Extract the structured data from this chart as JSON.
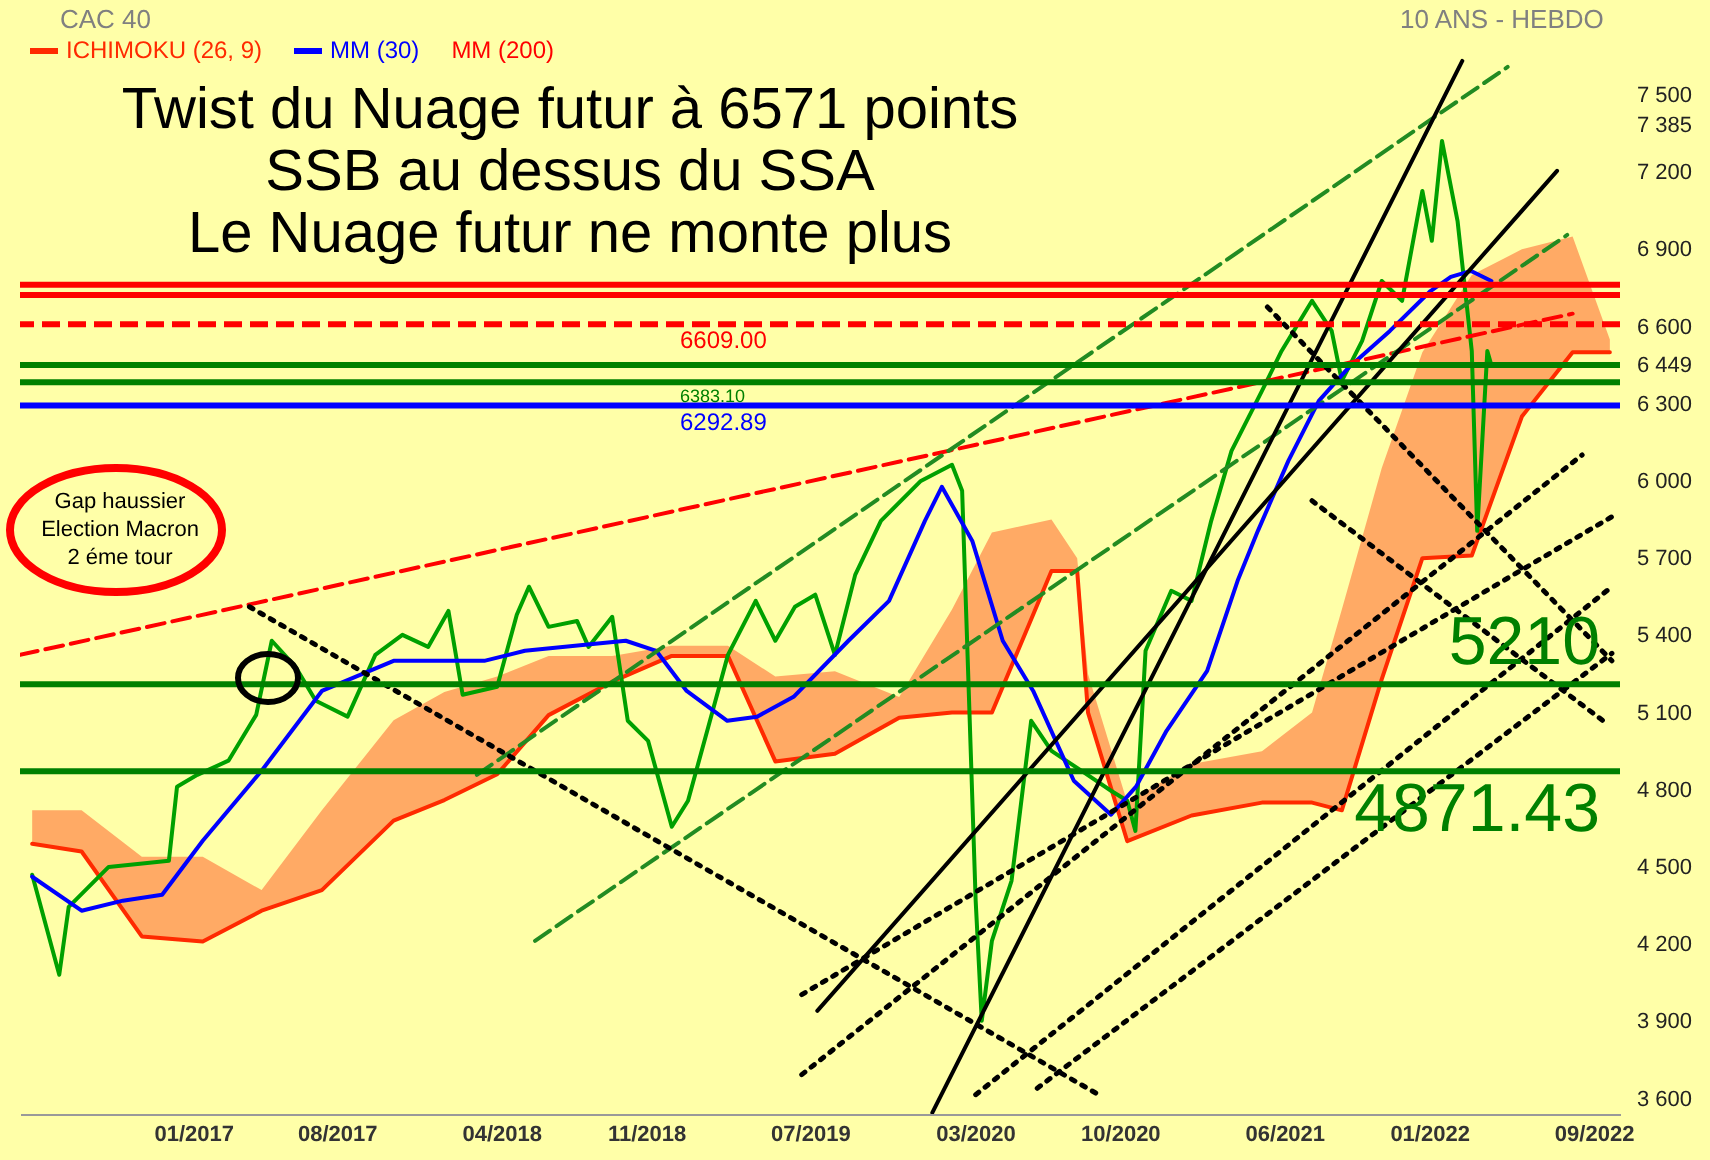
{
  "chart_data": {
    "type": "line",
    "title": "CAC 40",
    "subtitle": "10 ANS - HEBDO",
    "legend": "top left",
    "xlim": [
      "2016-04-20",
      "2022-10-10"
    ],
    "ylim": [
      3540,
      7830
    ],
    "xticks": [
      {
        "value": "2017-01",
        "label": "01/2017"
      },
      {
        "value": "2017-08",
        "label": "08/2017"
      },
      {
        "value": "2018-04",
        "label": "04/2018"
      },
      {
        "value": "2018-11",
        "label": "11/2018"
      },
      {
        "value": "2019-07",
        "label": "07/2019"
      },
      {
        "value": "2020-03",
        "label": "03/2020"
      },
      {
        "value": "2020-10",
        "label": "10/2020"
      },
      {
        "value": "2021-06",
        "label": "06/2021"
      },
      {
        "value": "2022-01",
        "label": "01/2022"
      },
      {
        "value": "2022-09",
        "label": "09/2022"
      }
    ],
    "yticks": [
      {
        "value": 3600,
        "label": "3 600"
      },
      {
        "value": 3900,
        "label": "3 900"
      },
      {
        "value": 4200,
        "label": "4 200"
      },
      {
        "value": 4500,
        "label": "4 500"
      },
      {
        "value": 4800,
        "label": "4 800"
      },
      {
        "value": 5100,
        "label": "5 100"
      },
      {
        "value": 5400,
        "label": "5 400"
      },
      {
        "value": 5700,
        "label": "5 700"
      },
      {
        "value": 6000,
        "label": "6 000"
      },
      {
        "value": 6300,
        "label": "6 300"
      },
      {
        "value": 6600,
        "label": "6 600"
      },
      {
        "value": 6900,
        "label": "6 900"
      },
      {
        "value": 7200,
        "label": "7 200"
      },
      {
        "value": 7385,
        "label": "7 385"
      },
      {
        "value": 6449,
        "label": "6 449"
      },
      {
        "value": 7500,
        "label": "7 500"
      }
    ],
    "series": [
      {
        "name": "ICHIMOKU (26, 9)",
        "color": "#ff2a00",
        "line_style": "solid",
        "x": [
          "2016-05-08",
          "2016-07-20",
          "2016-10-17",
          "2017-01-15",
          "2017-04-12",
          "2017-07-10",
          "2017-10-24",
          "2018-01-07",
          "2018-03-26",
          "2018-06-10",
          "2018-09-12",
          "2018-12-09",
          "2019-03-02",
          "2019-05-11",
          "2019-08-07",
          "2019-11-10",
          "2020-01-27",
          "2020-03-26",
          "2020-06-22",
          "2020-07-30",
          "2020-08-15",
          "2020-10-12",
          "2021-01-15",
          "2021-04-29",
          "2021-07-12",
          "2021-08-25",
          "2021-10-23",
          "2021-12-22",
          "2022-03-05",
          "2022-05-18",
          "2022-08-01",
          "2022-09-25"
        ],
        "values": [
          4590,
          4560,
          4230,
          4210,
          4330,
          4410,
          4680,
          4760,
          4860,
          5090,
          5220,
          5320,
          5320,
          4910,
          4940,
          5080,
          5100,
          5100,
          5650,
          5650,
          5100,
          4600,
          4700,
          4750,
          4750,
          4720,
          5230,
          5700,
          5710,
          6250,
          6500,
          6500
        ],
        "lower": [
          4590,
          4560,
          4230,
          4210,
          4330,
          4410,
          4680,
          4760,
          4860,
          5090,
          5220,
          5320,
          5320,
          4910,
          4940,
          5080,
          5100,
          5100,
          5650,
          5650,
          5100,
          4600,
          4700,
          4750,
          4750,
          4720,
          5230,
          5700,
          5710,
          6250,
          6500,
          6500
        ],
        "upper": [
          4720,
          4720,
          4540,
          4540,
          4410,
          4720,
          5070,
          5180,
          5240,
          5320,
          5320,
          5360,
          5360,
          5240,
          5260,
          5160,
          5500,
          5800,
          5850,
          5700,
          5250,
          4750,
          4900,
          4950,
          5100,
          5500,
          6050,
          6500,
          6800,
          6900,
          6950,
          6550
        ]
      },
      {
        "color": "#00a000",
        "line_style": "solid",
        "x": [
          "2016-05-08",
          "2016-06-17",
          "2016-07-01",
          "2016-08-29",
          "2016-11-26",
          "2016-12-08",
          "2017-01-07",
          "2017-02-22",
          "2017-04-04",
          "2017-04-27",
          "2017-06-01",
          "2017-07-01",
          "2017-08-17",
          "2017-09-27",
          "2017-11-06",
          "2017-12-14",
          "2018-01-13",
          "2018-02-03",
          "2018-03-26",
          "2018-04-24",
          "2018-05-12",
          "2018-06-10",
          "2018-07-22",
          "2018-08-08",
          "2018-09-12",
          "2018-10-05",
          "2018-11-04",
          "2018-12-09",
          "2019-01-02",
          "2019-02-01",
          "2019-03-02",
          "2019-04-12",
          "2019-05-11",
          "2019-06-09",
          "2019-07-09",
          "2019-08-07",
          "2019-09-06",
          "2019-10-14",
          "2019-12-12",
          "2020-01-27",
          "2020-02-11",
          "2020-03-02",
          "2020-03-11",
          "2020-03-26",
          "2020-04-24",
          "2020-05-23",
          "2020-06-22",
          "2020-08-05",
          "2020-09-18",
          "2020-10-12",
          "2020-10-24",
          "2020-11-08",
          "2020-12-16",
          "2021-01-15",
          "2021-02-13",
          "2021-03-15",
          "2021-04-29",
          "2021-05-28",
          "2021-07-12",
          "2021-08-10",
          "2021-08-25",
          "2021-09-24",
          "2021-10-23",
          "2021-11-22",
          "2021-12-22",
          "2022-01-05",
          "2022-01-20",
          "2022-02-12",
          "2022-03-05",
          "2022-03-13",
          "2022-03-28",
          "2022-04-03"
        ],
        "values": [
          4470,
          4081,
          4345,
          4500,
          4524,
          4812,
          4858,
          4913,
          5091,
          5379,
          5278,
          5146,
          5084,
          5324,
          5402,
          5355,
          5495,
          5169,
          5200,
          5480,
          5589,
          5433,
          5456,
          5355,
          5472,
          5068,
          4990,
          4656,
          4757,
          5045,
          5324,
          5534,
          5379,
          5511,
          5558,
          5324,
          5635,
          5845,
          6000,
          6063,
          5962,
          4369,
          3902,
          4213,
          4446,
          5068,
          4951,
          4874,
          4796,
          4757,
          4640,
          5340,
          5573,
          5534,
          5845,
          6117,
          6350,
          6505,
          6700,
          6583,
          6389,
          6544,
          6777,
          6700,
          7127,
          6933,
          7321,
          7010,
          6505,
          5806,
          6505,
          6449
        ]
      },
      {
        "name": "MM (30)",
        "color": "#0000ff",
        "line_style": "solid",
        "x": [
          "2016-05-08",
          "2016-07-20",
          "2016-09-19",
          "2016-11-16",
          "2017-01-15",
          "2017-04-12",
          "2017-07-10",
          "2017-10-24",
          "2018-01-07",
          "2018-03-07",
          "2018-05-06",
          "2018-08-03",
          "2018-10-02",
          "2018-11-16",
          "2018-12-31",
          "2019-03-01",
          "2019-04-14",
          "2019-06-07",
          "2019-08-27",
          "2019-10-26",
          "2019-12-18",
          "2020-01-12",
          "2020-02-26",
          "2020-04-11",
          "2020-05-26",
          "2020-07-25",
          "2020-09-18",
          "2020-10-25",
          "2020-12-09",
          "2021-02-07",
          "2021-03-24",
          "2021-04-23",
          "2021-06-07",
          "2021-07-22",
          "2021-09-05",
          "2021-11-04",
          "2022-01-03",
          "2022-02-02",
          "2022-03-04",
          "2022-04-03"
        ],
        "values": [
          4462,
          4330,
          4369,
          4392,
          4602,
          4874,
          5184,
          5301,
          5301,
          5301,
          5340,
          5363,
          5379,
          5340,
          5184,
          5068,
          5084,
          5161,
          5379,
          5534,
          5845,
          5977,
          5767,
          5379,
          5184,
          4835,
          4703,
          4812,
          5029,
          5262,
          5612,
          5806,
          6078,
          6311,
          6443,
          6583,
          6738,
          6793,
          6816,
          6777
        ]
      },
      {
        "color": "#ff0000",
        "line_style": "dashed",
        "x": [
          "2016-04-20",
          "2022-08-01"
        ],
        "values": [
          5324,
          6650
        ]
      },
      {
        "color": "#228b22",
        "line_style": "dashed",
        "x": [
          "2018-02-24",
          "2022-04-27"
        ],
        "values": [
          4858,
          7609
        ]
      },
      {
        "color": "#228b22",
        "line_style": "dashed",
        "x": [
          "2018-05-21",
          "2022-07-24"
        ],
        "values": [
          4213,
          6956
        ]
      },
      {
        "color": "#000000",
        "line_style": "solid",
        "x": [
          "2019-12-29",
          "2022-02-19"
        ],
        "values": [
          3545,
          7632
        ]
      },
      {
        "color": "#000000",
        "line_style": "solid",
        "x": [
          "2019-07-12",
          "2022-07-09"
        ],
        "values": [
          3941,
          7205
        ]
      },
      {
        "color": "#000000",
        "line_style": "dotted",
        "x": [
          "2017-03-25",
          "2020-09-05"
        ],
        "values": [
          5511,
          3607
        ]
      },
      {
        "color": "#000000",
        "line_style": "dotted",
        "x": [
          "2019-06-19",
          "2022-08-15"
        ],
        "values": [
          3693,
          6101
        ]
      },
      {
        "color": "#000000",
        "line_style": "dotted",
        "x": [
          "2019-06-19",
          "2022-09-28"
        ],
        "values": [
          4004,
          5861
        ]
      },
      {
        "color": "#000000",
        "line_style": "dotted",
        "x": [
          "2020-03-02",
          "2022-09-28"
        ],
        "values": [
          3615,
          5589
        ]
      },
      {
        "color": "#000000",
        "line_style": "dotted",
        "x": [
          "2020-06-01",
          "2022-09-28"
        ],
        "values": [
          3640,
          5330
        ]
      },
      {
        "color": "#000000",
        "line_style": "dotted",
        "x": [
          "2021-05-07",
          "2022-09-28"
        ],
        "values": [
          6676,
          5301
        ]
      },
      {
        "color": "#000000",
        "line_style": "dotted",
        "x": [
          "2021-07-12",
          "2022-09-15"
        ],
        "values": [
          5923,
          5068
        ]
      }
    ],
    "ref_lines": [
      {
        "axis": "y",
        "value": 5210,
        "label": "5210",
        "color": "#008000",
        "line_style": "solid"
      },
      {
        "axis": "y",
        "value": 4871.43,
        "label": "4871.43",
        "color": "#008000",
        "line_style": "solid"
      },
      {
        "axis": "y",
        "value": 6292.89,
        "label": "6292.89",
        "color": "#0000ff",
        "line_style": "solid"
      },
      {
        "axis": "y",
        "value": 6609,
        "label": "6609.00",
        "color": "#ff0000",
        "line_style": "dashed"
      },
      {
        "axis": "y",
        "value": 6383.1,
        "label": "6383.10",
        "color": "#008000",
        "line_style": "solid"
      },
      {
        "axis": "y",
        "value": 6451,
        "color": "#008000",
        "line_style": "solid"
      },
      {
        "axis": "y",
        "value": 6723,
        "color": "#ff0000",
        "line_style": "solid"
      },
      {
        "axis": "y",
        "value": 6762,
        "color": "#ff0000",
        "line_style": "solid"
      }
    ],
    "annotations": [
      "MM (200)",
      "Twist du Nuage futur à 6571 points\nSSB au dessus du SSA\nLe Nuage futur ne monte plus",
      "Gap haussier\nElection Macron\n2 éme tour"
    ]
  }
}
